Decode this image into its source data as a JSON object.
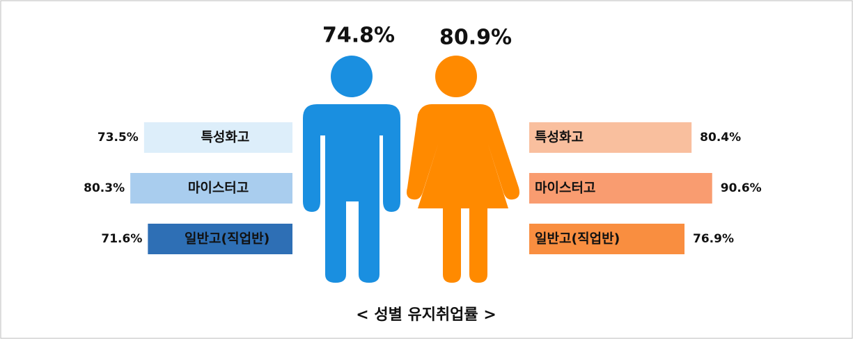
{
  "chart_data": {
    "type": "butterfly",
    "title": "< 성별 유지취업률 >",
    "categories": [
      "특성화고",
      "마이스터고",
      "일반고(직업반)"
    ],
    "totals": [
      74.8,
      80.9
    ],
    "total_labels": [
      "74.8%",
      "80.9%"
    ],
    "figure_colors": [
      "#1a8fe0",
      "#ff8a00"
    ],
    "series": [
      {
        "values": [
          73.5,
          80.3,
          71.6
        ],
        "value_labels": [
          "73.5%",
          "80.3%",
          "71.6%"
        ],
        "colors": [
          "#ddeefa",
          "#a9cdee",
          "#2e6fb5"
        ]
      },
      {
        "values": [
          80.4,
          90.6,
          76.9
        ],
        "value_labels": [
          "80.4%",
          "90.6%",
          "76.9%"
        ],
        "colors": [
          "#f9bf9e",
          "#f99c70",
          "#f98e40"
        ]
      }
    ]
  }
}
